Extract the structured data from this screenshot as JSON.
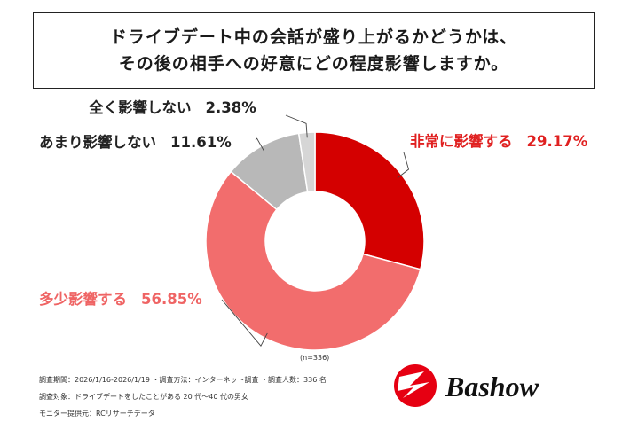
{
  "title": {
    "line1": "ドライブデート中の会話が盛り上がるかどうかは、",
    "line2": "その後の相手への好意にどの程度影響しますか。"
  },
  "chart_data": {
    "type": "pie",
    "donut": true,
    "slices": [
      {
        "label": "非常に影響する",
        "value": 29.17,
        "value_text": "29.17%",
        "color": "#d40000",
        "label_color": "#e02020"
      },
      {
        "label": "多少影響する",
        "value": 56.85,
        "value_text": "56.85%",
        "color": "#f26d6d",
        "label_color": "#ef6464"
      },
      {
        "label": "あまり影響しない",
        "value": 11.61,
        "value_text": "11.61%",
        "color": "#b8b8b8",
        "label_color": "#222222"
      },
      {
        "label": "全く影響しない",
        "value": 2.38,
        "value_text": "2.38%",
        "color": "#d6d6d6",
        "label_color": "#222222"
      }
    ],
    "note": "(n=336)"
  },
  "footnotes": [
    "調査期間：2026/1/16-2026/1/19 ・調査方法：インターネット調査 ・調査人数：336 名",
    "調査対象：ドライブデートをしたことがある 20 代〜40 代の男女",
    "モニター提供元：RCリサーチデータ"
  ],
  "logo": {
    "text": "Bashow",
    "color": "#e60012"
  }
}
